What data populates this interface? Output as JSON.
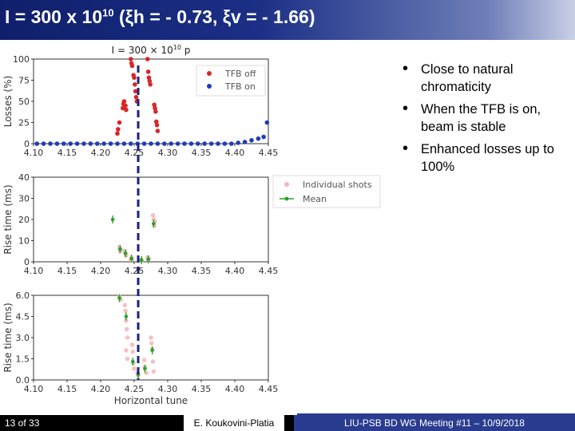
{
  "slide": {
    "title_main": "I = 300 x 10",
    "title_exp": "10",
    "title_rest": " (ξh = - 0.73, ξv = - 1.66)",
    "bullets": [
      "Close to natural chromaticity",
      "When the TFB is on, beam is stable",
      "Enhanced losses up to 100%"
    ],
    "footer": {
      "page": "13 of 33",
      "author": "E. Koukovini-Platia",
      "meeting": "LIU-PSB BD WG Meeting #11 – 10/9/2018"
    }
  },
  "colors": {
    "red": "#d62728",
    "blue": "#1f3db4",
    "green": "#2ca02c",
    "pink": "#f4b6b6",
    "dashed": "#1a237e"
  },
  "chart_data": [
    {
      "type": "scatter",
      "title": "I = 300 × 10",
      "title_exp": "10",
      "title_suffix": " p",
      "xlabel": "",
      "ylabel": "Losses (%)",
      "xlim": [
        4.1,
        4.45
      ],
      "ylim": [
        0,
        100
      ],
      "xticks": [
        "4.10",
        "4.15",
        "4.20",
        "4.25",
        "4.30",
        "4.35",
        "4.40",
        "4.45"
      ],
      "yticks": [
        "0",
        "25",
        "50",
        "75",
        "100"
      ],
      "ytick_values": [
        0,
        25,
        50,
        75,
        100
      ],
      "vline_x": 4.256,
      "legend": [
        {
          "name": "TFB off",
          "color": "#d62728"
        },
        {
          "name": "TFB on",
          "color": "#1f3db4"
        }
      ],
      "series": [
        {
          "name": "TFB off",
          "color": "#d62728",
          "points": [
            [
              4.225,
              12
            ],
            [
              4.226,
              17
            ],
            [
              4.228,
              25
            ],
            [
              4.233,
              42
            ],
            [
              4.234,
              47
            ],
            [
              4.235,
              50
            ],
            [
              4.237,
              45
            ],
            [
              4.238,
              40
            ],
            [
              4.245,
              100
            ],
            [
              4.246,
              95
            ],
            [
              4.247,
              92
            ],
            [
              4.249,
              81
            ],
            [
              4.25,
              78
            ],
            [
              4.251,
              70
            ],
            [
              4.252,
              62
            ],
            [
              4.253,
              55
            ],
            [
              4.254,
              50
            ],
            [
              4.27,
              100
            ],
            [
              4.271,
              85
            ],
            [
              4.272,
              78
            ],
            [
              4.273,
              74
            ],
            [
              4.274,
              70
            ],
            [
              4.28,
              46
            ],
            [
              4.281,
              42
            ],
            [
              4.282,
              38
            ],
            [
              4.283,
              26
            ],
            [
              4.284,
              22
            ],
            [
              4.285,
              15
            ]
          ]
        },
        {
          "name": "TFB on",
          "color": "#1f3db4",
          "points": [
            [
              4.105,
              0
            ],
            [
              4.115,
              0
            ],
            [
              4.125,
              0
            ],
            [
              4.135,
              0
            ],
            [
              4.145,
              0
            ],
            [
              4.155,
              0
            ],
            [
              4.165,
              0
            ],
            [
              4.175,
              0
            ],
            [
              4.185,
              0
            ],
            [
              4.195,
              0
            ],
            [
              4.205,
              0
            ],
            [
              4.215,
              0
            ],
            [
              4.225,
              0
            ],
            [
              4.235,
              0
            ],
            [
              4.245,
              0
            ],
            [
              4.255,
              0
            ],
            [
              4.265,
              0
            ],
            [
              4.275,
              0
            ],
            [
              4.285,
              0
            ],
            [
              4.295,
              0
            ],
            [
              4.305,
              0
            ],
            [
              4.315,
              0
            ],
            [
              4.325,
              0
            ],
            [
              4.335,
              0
            ],
            [
              4.345,
              0
            ],
            [
              4.355,
              0
            ],
            [
              4.365,
              0
            ],
            [
              4.375,
              0
            ],
            [
              4.385,
              0
            ],
            [
              4.395,
              0
            ],
            [
              4.405,
              1
            ],
            [
              4.415,
              2
            ],
            [
              4.425,
              4
            ],
            [
              4.435,
              6
            ],
            [
              4.443,
              8
            ],
            [
              4.448,
              25
            ]
          ]
        }
      ]
    },
    {
      "type": "scatter",
      "title": "",
      "xlabel": "",
      "ylabel": "Rise time (ms)",
      "xlim": [
        4.1,
        4.45
      ],
      "ylim": [
        0,
        40
      ],
      "xticks": [
        "4.10",
        "4.15",
        "4.20",
        "4.25",
        "4.30",
        "4.35",
        "4.40",
        "4.45"
      ],
      "yticks": [
        "0",
        "10",
        "20",
        "30",
        "40"
      ],
      "ytick_values": [
        0,
        10,
        20,
        30,
        40
      ],
      "vline_x": 4.256,
      "legend": [
        {
          "name": "Individual shots",
          "color": "#f4b6b6"
        },
        {
          "name": "Mean",
          "color": "#2ca02c"
        }
      ],
      "series": [
        {
          "name": "Individual shots",
          "color": "#f4b6b6",
          "points": [
            [
              4.228,
              7
            ],
            [
              4.229,
              5
            ],
            [
              4.23,
              6
            ],
            [
              4.236,
              5
            ],
            [
              4.237,
              4
            ],
            [
              4.238,
              3
            ],
            [
              4.245,
              1
            ],
            [
              4.246,
              2
            ],
            [
              4.247,
              1
            ],
            [
              4.26,
              1
            ],
            [
              4.261,
              0.5
            ],
            [
              4.27,
              2
            ],
            [
              4.271,
              1
            ],
            [
              4.272,
              1.5
            ],
            [
              4.278,
              22
            ],
            [
              4.279,
              20
            ],
            [
              4.28,
              17
            ],
            [
              4.281,
              19
            ]
          ]
        },
        {
          "name": "Mean",
          "color": "#2ca02c",
          "points": [
            [
              4.218,
              20
            ],
            [
              4.229,
              6
            ],
            [
              4.237,
              4
            ],
            [
              4.246,
              1.5
            ],
            [
              4.261,
              0.8
            ],
            [
              4.271,
              1.2
            ],
            [
              4.279,
              18
            ]
          ]
        }
      ]
    },
    {
      "type": "scatter",
      "title": "",
      "xlabel": "Horizontal tune",
      "ylabel": "Rise time (ms)",
      "xlim": [
        4.1,
        4.45
      ],
      "ylim": [
        0,
        6
      ],
      "xticks": [
        "4.10",
        "4.15",
        "4.20",
        "4.25",
        "4.30",
        "4.35",
        "4.40",
        "4.45"
      ],
      "yticks": [
        "0.0",
        "1.5",
        "3.0",
        "4.5",
        "6.0"
      ],
      "ytick_values": [
        0,
        1.5,
        3,
        4.5,
        6
      ],
      "vline_x": 4.256,
      "series": [
        {
          "name": "Individual shots",
          "color": "#f4b6b6",
          "points": [
            [
              4.228,
              5.9
            ],
            [
              4.23,
              5.7
            ],
            [
              4.236,
              5.3
            ],
            [
              4.237,
              4.9
            ],
            [
              4.238,
              4.2
            ],
            [
              4.239,
              3.6
            ],
            [
              4.24,
              3.0
            ],
            [
              4.238,
              2.1
            ],
            [
              4.24,
              1.5
            ],
            [
              4.247,
              2.5
            ],
            [
              4.248,
              2.0
            ],
            [
              4.249,
              1.2
            ],
            [
              4.25,
              0.8
            ],
            [
              4.255,
              0.5
            ],
            [
              4.256,
              0.3
            ],
            [
              4.265,
              1.4
            ],
            [
              4.266,
              0.9
            ],
            [
              4.268,
              0.5
            ],
            [
              4.275,
              3.0
            ],
            [
              4.276,
              2.6
            ],
            [
              4.277,
              2.2
            ],
            [
              4.278,
              1.3
            ],
            [
              4.279,
              0.6
            ]
          ]
        },
        {
          "name": "Mean",
          "color": "#2ca02c",
          "points": [
            [
              4.228,
              5.8
            ],
            [
              4.238,
              4.5
            ],
            [
              4.248,
              1.3
            ],
            [
              4.256,
              0.4
            ],
            [
              4.266,
              0.8
            ],
            [
              4.277,
              2.1
            ]
          ]
        }
      ]
    }
  ]
}
